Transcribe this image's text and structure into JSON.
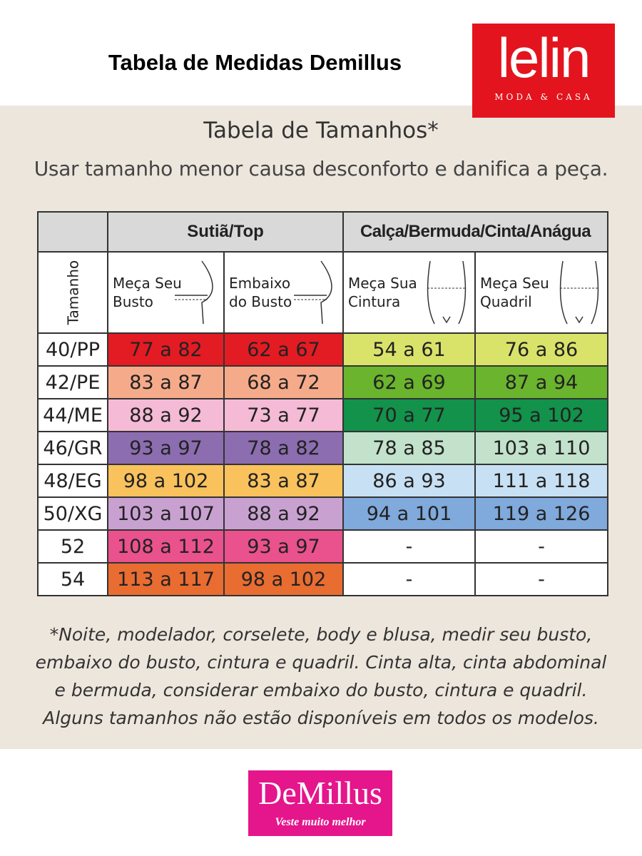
{
  "header": {
    "title": "Tabela de Medidas Demillus",
    "logo": {
      "name": "lelin",
      "tagline": "MODA & CASA"
    }
  },
  "table_title": "Tabela de Tamanhos*",
  "subtitle": "Usar tamanho menor causa desconforto e danifica a peça.",
  "table": {
    "groups": [
      "Sutiã/Top",
      "Calça/Bermuda/Cinta/Anágua"
    ],
    "size_header": "Tamanho",
    "columns": [
      [
        "Meça Seu",
        "Busto"
      ],
      [
        "Embaixo",
        "do Busto"
      ],
      [
        "Meça Sua",
        "Cintura"
      ],
      [
        "Meça Seu",
        "Quadril"
      ]
    ],
    "rows": [
      [
        "40/PP",
        "77 a 82",
        "62 a 67",
        "54 a 61",
        "76 a 86"
      ],
      [
        "42/PE",
        "83 a 87",
        "68 a 72",
        "62 a 69",
        "87 a 94"
      ],
      [
        "44/ME",
        "88 a 92",
        "73 a 77",
        "70 a 77",
        "95 a 102"
      ],
      [
        "46/GR",
        "93 a 97",
        "78 a 82",
        "78 a 85",
        "103 a 110"
      ],
      [
        "48/EG",
        "98 a 102",
        "83 a 87",
        "86 a 93",
        "111 a 118"
      ],
      [
        "50/XG",
        "103 a 107",
        "88 a 92",
        "94 a 101",
        "119 a 126"
      ],
      [
        "52",
        "108 a 112",
        "93 a 97",
        "-",
        "-"
      ],
      [
        "54",
        "113 a 117",
        "98 a 102",
        "-",
        "-"
      ]
    ]
  },
  "footnote": [
    "*Noite, modelador, corselete, body e blusa, medir seu busto,",
    "embaixo do busto, cintura e quadril. Cinta alta, cinta abdominal",
    "e bermuda, considerar embaixo do busto, cintura e quadril.",
    "Alguns tamanhos não estão disponíveis em todos os modelos."
  ],
  "footer_logo": {
    "name": "DeMillus",
    "tagline": "Veste muito melhor"
  }
}
